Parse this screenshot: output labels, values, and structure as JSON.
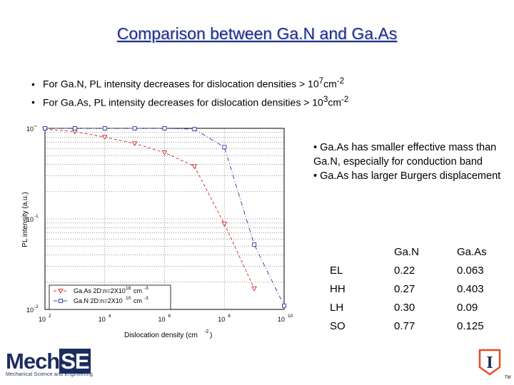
{
  "slide": {
    "title": "Comparison between Ga.N and Ga.As",
    "bullets": [
      {
        "text": "For Ga.N, PL intensity decreases for dislocation densities > 10",
        "sup": "7",
        "unit": "cm",
        "unit_sup": "-2"
      },
      {
        "text": "For Ga.As, PL intensity decreases for dislocation densities > 10",
        "sup": "3",
        "unit": "cm",
        "unit_sup": "-2"
      }
    ],
    "notes": [
      "• Ga.As has smaller effective mass than Ga.N, especially for conduction band",
      "• Ga.As has larger Burgers displacement"
    ],
    "table": {
      "header": [
        "",
        "Ga.N",
        "Ga.As"
      ],
      "rows": [
        [
          "EL",
          "0.22",
          "0.063"
        ],
        [
          "HH",
          "0.27",
          "0.403"
        ],
        [
          "LH",
          "0.30",
          "0.09"
        ],
        [
          "SO",
          "0.77",
          "0.125"
        ]
      ]
    },
    "logos": {
      "mechse_word_a": "Mech",
      "mechse_word_b": "SE",
      "mechse_sub": "Mechanical Science and Engineering",
      "illinois_glyph": "I",
      "tm": "TM",
      "brand_navy": "#1b2c5e",
      "illinois_orange": "#e84a27"
    }
  },
  "chart_data": {
    "type": "line",
    "xscale": "log",
    "yscale": "log",
    "xlim": [
      100,
      10000000000
    ],
    "ylim": [
      0.01,
      1
    ],
    "xticks": [
      {
        "base": "10",
        "exp": "2"
      },
      {
        "base": "10",
        "exp": "4"
      },
      {
        "base": "10",
        "exp": "6"
      },
      {
        "base": "10",
        "exp": "8"
      },
      {
        "base": "10",
        "exp": "10"
      }
    ],
    "yticks": [
      {
        "base": "10",
        "exp": "-2"
      },
      {
        "base": "10",
        "exp": "-1"
      },
      {
        "base": "10",
        "exp": "0"
      }
    ],
    "xlabel": "Dislocation density (cm",
    "xlabel_sup": "-2",
    "xlabel_end": ")",
    "ylabel": "PL intensity (a.u.)",
    "series": [
      {
        "name": "Ga.As 2D:n=2X10",
        "name_sup": "18",
        "name_unit": "cm",
        "name_unit_sup": "-3",
        "marker": "triangle-down",
        "color": "#d23a3a",
        "dash": "4,3",
        "x": [
          100,
          1000,
          10000,
          100000,
          1000000,
          10000000,
          100000000,
          1000000000
        ],
        "y": [
          0.98,
          0.92,
          0.8,
          0.68,
          0.54,
          0.38,
          0.088,
          0.017
        ]
      },
      {
        "name": "Ga.N 2D:n=2X10",
        "name_sup": "10",
        "name_unit": "cm",
        "name_unit_sup": "-3",
        "marker": "square",
        "color": "#3a4aa8",
        "dash": "6,3,1,3",
        "x": [
          100,
          1000,
          10000,
          100000,
          1000000,
          10000000,
          100000000,
          1000000000,
          10000000000
        ],
        "y": [
          1.0,
          1.0,
          1.0,
          1.0,
          1.0,
          0.98,
          0.62,
          0.052,
          0.011
        ]
      }
    ],
    "grid": "horizontal-dotted",
    "legend": "bottom-left"
  }
}
